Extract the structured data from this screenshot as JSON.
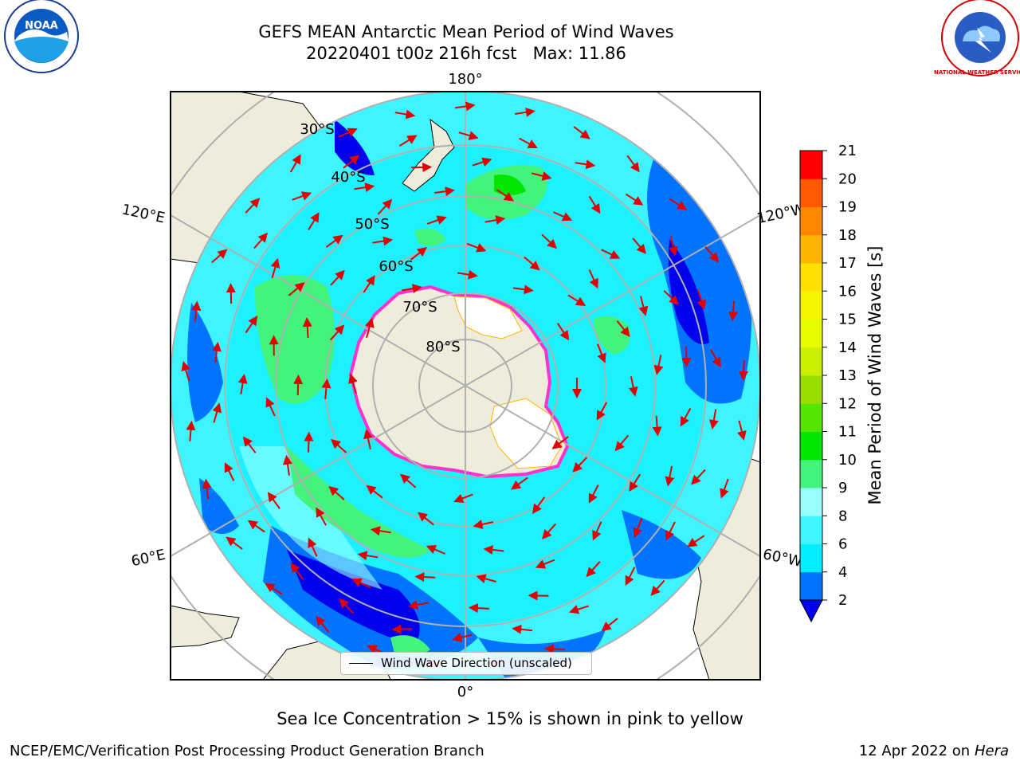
{
  "title": {
    "line1": "GEFS MEAN Antarctic Mean Period of Wind Waves",
    "line2": "20220401 t00z 216h fcst   Max: 11.86"
  },
  "map": {
    "projection": "south polar stereographic",
    "longitude_labels": [
      "180°",
      "120°E",
      "120°W",
      "60°E",
      "60°W",
      "0°"
    ],
    "latitude_labels": [
      "30°S",
      "40°S",
      "50°S",
      "60°S",
      "70°S",
      "80°S"
    ],
    "legend": "Wind Wave Direction (unscaled)",
    "colors": {
      "land": "#eeecdb",
      "ice_shelf": "#ffffff",
      "sea_ice_edge": "#ff33cc",
      "arrow": "#e00000",
      "gridline": "#b0b0b0"
    }
  },
  "colorbar": {
    "label": "Mean Period of Wind Waves [s]",
    "tick_labels": [
      "2",
      "4",
      "6",
      "8",
      "9",
      "10",
      "11",
      "12",
      "13",
      "14",
      "15",
      "16",
      "17",
      "18",
      "19",
      "20",
      "21"
    ],
    "colors": [
      "#0074ff",
      "#00eeff",
      "#3ef5ff",
      "#99ffff",
      "#43f37b",
      "#00e600",
      "#55e600",
      "#99dd00",
      "#c8f000",
      "#e6ff00",
      "#f5f500",
      "#ffe000",
      "#ffb400",
      "#ff8800",
      "#ff5a00",
      "#ff0000"
    ],
    "under_color": "#0000ee"
  },
  "caption": "Sea Ice Concentration > 15% is shown in pink to yellow",
  "footer": {
    "left": "NCEP/EMC/Verification Post Processing Product Generation Branch",
    "right_date": "12 Apr 2022 on ",
    "right_host": "Hera"
  },
  "logos": {
    "left": "NOAA",
    "right": "NATIONAL WEATHER SERVICE"
  }
}
